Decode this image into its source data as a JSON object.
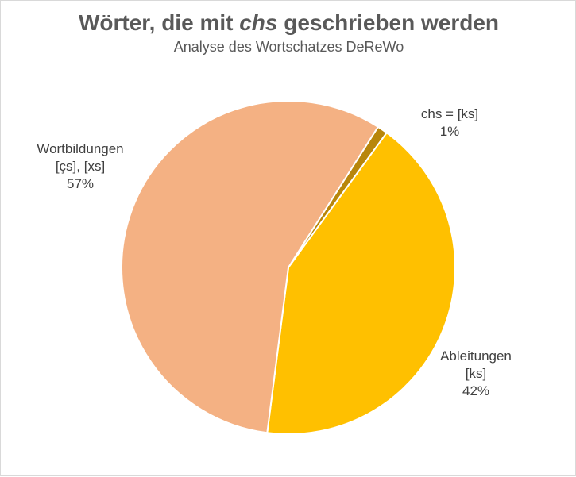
{
  "chart_data": {
    "type": "pie",
    "title_before": "Wörter, die mit ",
    "title_emph": "chs",
    "title_after": " geschrieben werden",
    "subtitle": "Analyse des Wortschatzes DeReWo",
    "start_angle_deg": 32.5,
    "slices": [
      {
        "label_lines": [
          "chs  = [ks]"
        ],
        "pct_label": "1%",
        "value": 1,
        "color": "#b8860b"
      },
      {
        "label_lines": [
          "Ableitungen",
          "[ks]"
        ],
        "pct_label": "42%",
        "value": 42,
        "color": "#ffc000"
      },
      {
        "label_lines": [
          "Wortbildungen",
          "[çs], [xs]"
        ],
        "pct_label": "57%",
        "value": 57,
        "color": "#f4b183"
      }
    ],
    "legend": "none"
  }
}
